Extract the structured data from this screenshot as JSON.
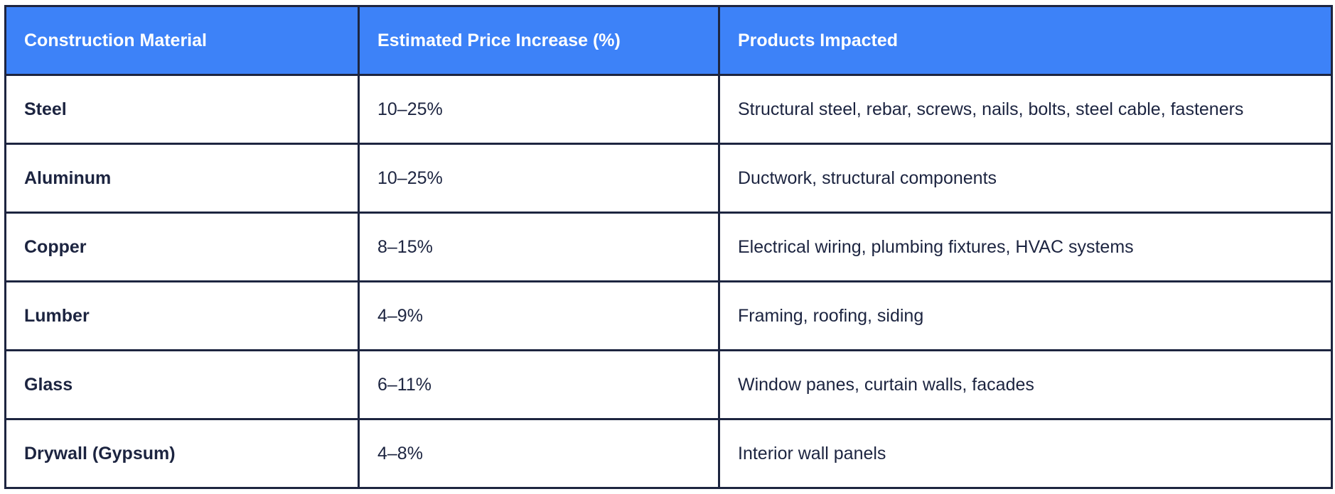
{
  "table": {
    "headers": [
      "Construction Material",
      "Estimated Price Increase (%)",
      "Products Impacted"
    ],
    "rows": [
      {
        "material": "Steel",
        "increase": "10–25%",
        "products": "Structural steel, rebar, screws, nails, bolts, steel cable, fasteners"
      },
      {
        "material": "Aluminum",
        "increase": "10–25%",
        "products": "Ductwork, structural components"
      },
      {
        "material": "Copper",
        "increase": "8–15%",
        "products": "Electrical wiring, plumbing fixtures, HVAC systems"
      },
      {
        "material": "Lumber",
        "increase": "4–9%",
        "products": "Framing, roofing, siding"
      },
      {
        "material": "Glass",
        "increase": "6–11%",
        "products": "Window panes, curtain walls, facades"
      },
      {
        "material": "Drywall (Gypsum)",
        "increase": "4–8%",
        "products": "Interior wall panels"
      }
    ]
  },
  "colors": {
    "header_background": "#3d82f8",
    "header_text": "#ffffff",
    "border": "#1d2540",
    "body_text": "#1c2440"
  }
}
